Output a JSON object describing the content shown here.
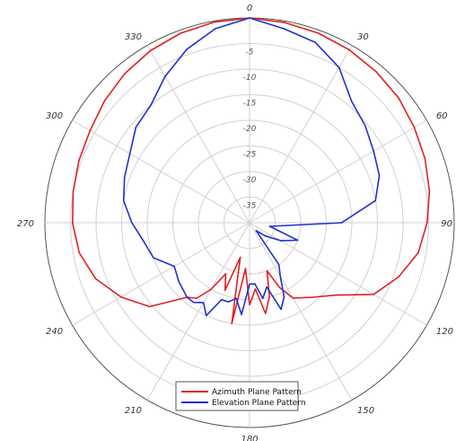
{
  "chart_data": {
    "type": "polar-line",
    "title": "",
    "angle_ticks": [
      "0",
      "30",
      "60",
      "90",
      "120",
      "150",
      "180",
      "210",
      "240",
      "270",
      "300",
      "330"
    ],
    "angle_tick_values": [
      0,
      30,
      60,
      90,
      120,
      150,
      180,
      210,
      240,
      270,
      300,
      330
    ],
    "radial_tick_labels": [
      "-5",
      "-10",
      "-15",
      "-20",
      "-25",
      "-30",
      "-35"
    ],
    "radial_ticks": [
      -5,
      -10,
      -15,
      -20,
      -25,
      -30,
      -35
    ],
    "rlim": [
      -40,
      0
    ],
    "angle_units": "degrees",
    "angle_zero": "top",
    "angle_direction": "clockwise",
    "grid": true,
    "legend": {
      "position": "bottom-center"
    },
    "series": [
      {
        "name": "Azimuth Plane Pattern",
        "color": "#e02020",
        "theta": [
          0,
          10,
          20,
          30,
          40,
          50,
          60,
          70,
          80,
          90,
          100,
          110,
          120,
          130,
          140,
          150,
          155,
          160,
          165,
          170,
          175,
          180,
          185,
          190,
          195,
          200,
          205,
          210,
          215,
          220,
          230,
          240,
          250,
          260,
          270,
          280,
          290,
          300,
          310,
          320,
          330,
          340,
          350,
          360
        ],
        "r": [
          0,
          -0.3,
          -0.6,
          -1,
          -1.5,
          -2,
          -2.8,
          -3.5,
          -4.3,
          -5.3,
          -6.5,
          -9,
          -12,
          -18,
          -21,
          -23,
          -26,
          -30,
          -25,
          -22,
          -27,
          -24,
          -31,
          -20,
          -33,
          -26,
          -29,
          -25,
          -22,
          -21,
          -14.5,
          -11,
          -8,
          -6.2,
          -5.4,
          -5,
          -4.5,
          -4,
          -3,
          -2,
          -1.2,
          -0.6,
          -0.2,
          0
        ]
      },
      {
        "name": "Elevation Plane Pattern",
        "color": "#2030d0",
        "theta": [
          0,
          10,
          20,
          30,
          40,
          50,
          60,
          70,
          80,
          90,
          100,
          110,
          120,
          130,
          140,
          145,
          150,
          155,
          160,
          165,
          170,
          175,
          180,
          185,
          190,
          195,
          200,
          205,
          210,
          215,
          220,
          230,
          240,
          250,
          260,
          270,
          280,
          290,
          300,
          310,
          320,
          330,
          340,
          350,
          360
        ],
        "r": [
          0,
          -1.5,
          -2.5,
          -5,
          -9,
          -10.5,
          -12,
          -13,
          -15,
          -22,
          -36,
          -30,
          -33,
          -36,
          -38,
          -30,
          -28,
          -24,
          -22,
          -27,
          -25,
          -28,
          -28,
          -22,
          -25,
          -24,
          -24,
          -20,
          -22,
          -21,
          -21,
          -22,
          -23,
          -20,
          -19,
          -17,
          -15,
          -14,
          -13,
          -11,
          -10,
          -7,
          -4,
          -1.5,
          0
        ]
      }
    ]
  }
}
